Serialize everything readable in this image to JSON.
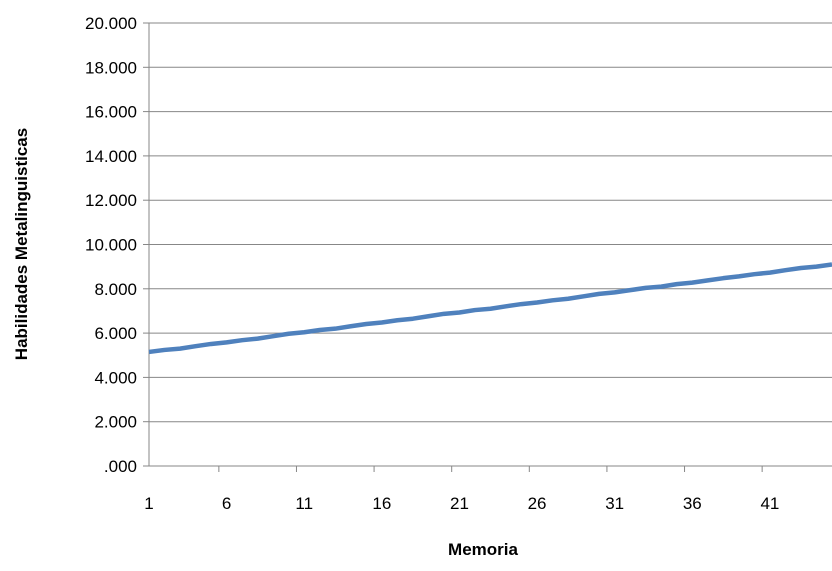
{
  "chart_data": {
    "type": "line",
    "title": "",
    "xlabel": "Memoria",
    "ylabel": "Habilidades Metalinguisticas",
    "x": [
      1,
      2,
      3,
      4,
      5,
      6,
      7,
      8,
      9,
      10,
      11,
      12,
      13,
      14,
      15,
      16,
      17,
      18,
      19,
      20,
      21,
      22,
      23,
      24,
      25,
      26,
      27,
      28,
      29,
      30,
      31,
      32,
      33,
      34,
      35,
      36,
      37,
      38,
      39,
      40,
      41,
      42,
      43,
      44,
      45
    ],
    "x_tick_values": [
      1,
      6,
      11,
      16,
      21,
      26,
      31,
      36,
      41
    ],
    "x_tick_labels": [
      "1",
      "6",
      "11",
      "16",
      "21",
      "26",
      "31",
      "36",
      "41"
    ],
    "xlim": [
      1,
      45
    ],
    "ylim": [
      0,
      20
    ],
    "y_tick_values": [
      0,
      2,
      4,
      6,
      8,
      10,
      12,
      14,
      16,
      18,
      20
    ],
    "y_tick_labels": [
      ".000",
      "2.000",
      "4.000",
      "6.000",
      "8.000",
      "10.000",
      "12.000",
      "14.000",
      "16.000",
      "18.000",
      "20.000"
    ],
    "grid": true,
    "legend": "none",
    "series": [
      {
        "color": "#4f81bd",
        "values": [
          5.15,
          5.24,
          5.3,
          5.41,
          5.51,
          5.58,
          5.68,
          5.75,
          5.86,
          5.97,
          6.04,
          6.14,
          6.2,
          6.31,
          6.41,
          6.48,
          6.58,
          6.65,
          6.76,
          6.87,
          6.93,
          7.04,
          7.1,
          7.21,
          7.31,
          7.38,
          7.48,
          7.55,
          7.66,
          7.77,
          7.84,
          7.94,
          8.04,
          8.1,
          8.21,
          8.28,
          8.38,
          8.48,
          8.56,
          8.66,
          8.73,
          8.84,
          8.94,
          9.0,
          9.1
        ]
      }
    ]
  }
}
